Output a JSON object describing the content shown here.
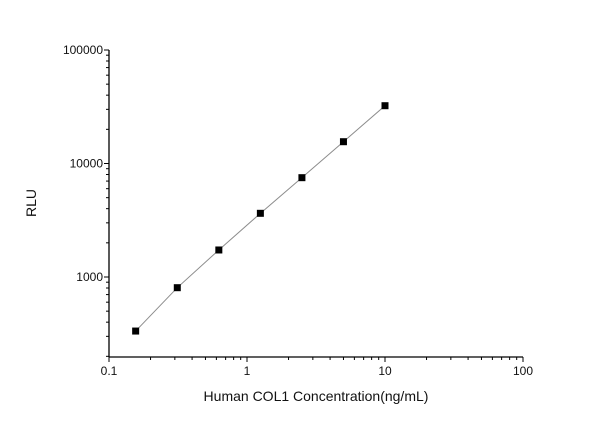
{
  "chart_data": {
    "type": "line",
    "title": "",
    "xlabel": "Human COL1 Concentration(ng/mL)",
    "ylabel": "RLU",
    "x_scale": "log",
    "y_scale": "log",
    "xlim": [
      0.1,
      100
    ],
    "ylim": [
      200,
      100000
    ],
    "x_ticks": [
      "0.1",
      "1",
      "10",
      "100"
    ],
    "y_ticks": [
      "1000",
      "10000",
      "100000"
    ],
    "grid": false,
    "legend": "none",
    "series": [
      {
        "x": [
          0.156,
          0.3125,
          0.625,
          1.25,
          2.5,
          5,
          10
        ],
        "y": [
          334,
          805,
          1730,
          3640,
          7500,
          15560,
          32300
        ],
        "marker": "square",
        "marker_color": "#000000",
        "line_color": "#8c8c8c"
      }
    ]
  }
}
